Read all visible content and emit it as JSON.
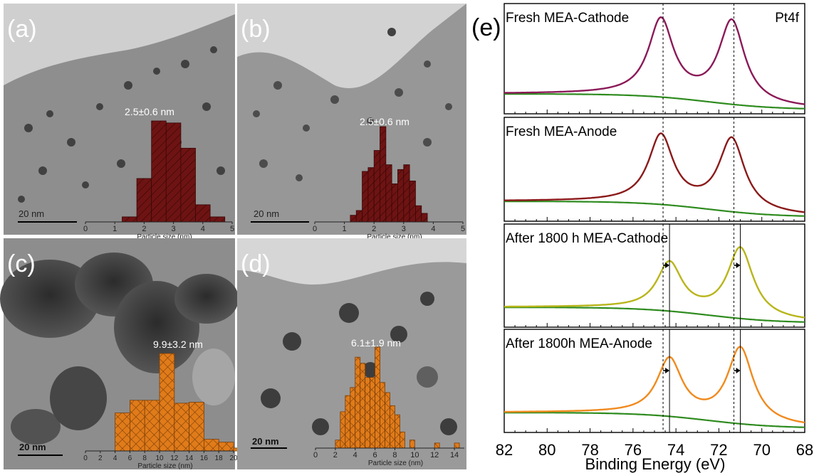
{
  "panels": {
    "a": {
      "label": "(a)",
      "size_text": "2.5±0.6 nm",
      "scale_text": "20 nm",
      "xlabel": "Particle size (nm)",
      "ticks": [
        "0",
        "1",
        "2",
        "3",
        "4",
        "5"
      ],
      "xlim": [
        0,
        5
      ],
      "bins": {
        "start": 1.25,
        "width": 0.5
      },
      "counts": [
        0.05,
        0.43,
        1.0,
        0.98,
        0.73,
        0.17,
        0.05
      ],
      "color": "#6e1313"
    },
    "b": {
      "label": "(b)",
      "size_text": "2.5±0.6 nm",
      "scale_text": "20 nm",
      "xlabel": "Particle size (nm)",
      "ticks": [
        "0",
        "1",
        "2",
        "3",
        "4",
        "5"
      ],
      "xlim": [
        0,
        5
      ],
      "bins": {
        "start": 1.2,
        "width": 0.2
      },
      "counts": [
        0.07,
        0.12,
        0.53,
        0.57,
        0.75,
        1.0,
        0.6,
        0.4,
        0.55,
        0.6,
        0.43,
        0.17,
        0.09
      ],
      "color": "#6e1313"
    },
    "c": {
      "label": "(c)",
      "size_text": "9.9±3.2 nm",
      "scale_text": "20 nm",
      "xlabel": "Particle size (nm)",
      "ticks": [
        "0",
        "2",
        "4",
        "6",
        "8",
        "10",
        "12",
        "14",
        "16",
        "18",
        "20"
      ],
      "xlim": [
        0,
        20
      ],
      "bins": {
        "start": 4,
        "width": 2
      },
      "counts": [
        0.39,
        0.52,
        0.52,
        1.0,
        0.49,
        0.5,
        0.12,
        0.09,
        0.03
      ],
      "color": "#e07b1a"
    },
    "d": {
      "label": "(d)",
      "size_text": "6.1±1.9 nm",
      "scale_text": "20 nm",
      "xlabel": "Particle size (nm)",
      "ticks": [
        "0",
        "2",
        "4",
        "6",
        "8",
        "10",
        "12",
        "14"
      ],
      "xlim": [
        0,
        15
      ],
      "bins": {
        "start": 2,
        "width": 0.5
      },
      "counts": [
        0.08,
        0.36,
        0.52,
        0.6,
        0.9,
        0.84,
        0.7,
        0.7,
        1.0,
        0.65,
        0.55,
        0.42,
        0.33,
        0.16,
        0.0,
        0.08,
        0.0,
        0.0,
        0.0,
        0.0,
        0.05,
        0.0,
        0.0,
        0.0,
        0.05
      ],
      "color": "#e07b1a"
    }
  },
  "xps": {
    "label": "(e)",
    "core_level": "Pt4f",
    "xlabel": "Binding Energy (eV)",
    "x_ticks": [
      "82",
      "80",
      "78",
      "76",
      "74",
      "72",
      "70",
      "68"
    ],
    "xlim": [
      82,
      68
    ],
    "reference_lines_eV": [
      74.6,
      71.3
    ],
    "shifted_lines_eV": [
      74.3,
      71.0
    ],
    "background_color": "#2e8b1e",
    "spectra": [
      {
        "label": "Fresh MEA-Cathode",
        "color": "#8b1a58",
        "peaks_eV": [
          74.7,
          71.4
        ],
        "peak_heights": [
          0.93,
          1.0
        ],
        "shift_arrows": false
      },
      {
        "label": "Fresh MEA-Anode",
        "color": "#8b1a1a",
        "peaks_eV": [
          74.7,
          71.4
        ],
        "peak_heights": [
          0.9,
          0.95
        ],
        "shift_arrows": false
      },
      {
        "label": "After 1800 h MEA-Cathode",
        "color": "#b8b51a",
        "peaks_eV": [
          74.3,
          71.0
        ],
        "peak_heights": [
          0.63,
          0.93
        ],
        "shift_arrows": true
      },
      {
        "label": "After 1800h MEA-Anode",
        "color": "#f08a1e",
        "peaks_eV": [
          74.3,
          71.0
        ],
        "peak_heights": [
          0.75,
          1.0
        ],
        "shift_arrows": true
      }
    ]
  }
}
